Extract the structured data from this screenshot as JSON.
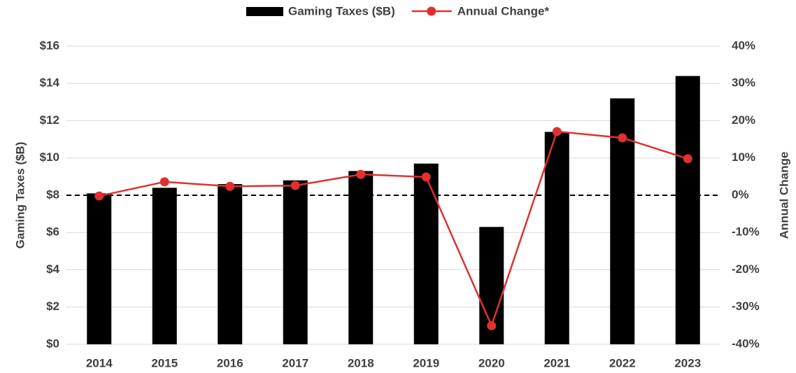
{
  "chart_data": {
    "type": "bar_line",
    "categories": [
      "2014",
      "2015",
      "2016",
      "2017",
      "2018",
      "2019",
      "2020",
      "2021",
      "2022",
      "2023"
    ],
    "series": [
      {
        "name": "Gaming Taxes ($B)",
        "color": "#000000",
        "type": "bar",
        "values": [
          8.1,
          8.4,
          8.6,
          8.8,
          9.3,
          9.7,
          6.3,
          11.4,
          13.2,
          14.4
        ]
      },
      {
        "name": "Annual Change*",
        "color": "#e03030",
        "type": "line",
        "axis": "y2",
        "values": [
          -0.2,
          3.6,
          2.4,
          2.6,
          5.6,
          4.9,
          -35,
          17.1,
          15.4,
          9.8
        ]
      }
    ],
    "y_label": "Gaming Taxes ($B)",
    "y2_label": "Annual Change",
    "ylim": [
      0,
      16
    ],
    "yticks": [
      {
        "value": 0,
        "label": "$0"
      },
      {
        "value": 2,
        "label": "$2"
      },
      {
        "value": 4,
        "label": "$4"
      },
      {
        "value": 6,
        "label": "$6"
      },
      {
        "value": 8,
        "label": "$8"
      },
      {
        "value": 10,
        "label": "$10"
      },
      {
        "value": 12,
        "label": "$12"
      },
      {
        "value": 14,
        "label": "$14"
      },
      {
        "value": 16,
        "label": "$16"
      }
    ],
    "y2lim": [
      -40,
      40
    ],
    "y2ticks": [
      {
        "value": -40,
        "label": "-40%"
      },
      {
        "value": -30,
        "label": "-30%"
      },
      {
        "value": -20,
        "label": "-20%"
      },
      {
        "value": -10,
        "label": "-10%"
      },
      {
        "value": 0,
        "label": "0%"
      },
      {
        "value": 10,
        "label": "10%"
      },
      {
        "value": 20,
        "label": "20%"
      },
      {
        "value": 30,
        "label": "30%"
      },
      {
        "value": 40,
        "label": "40%"
      }
    ],
    "grid": true,
    "legend": "top"
  }
}
